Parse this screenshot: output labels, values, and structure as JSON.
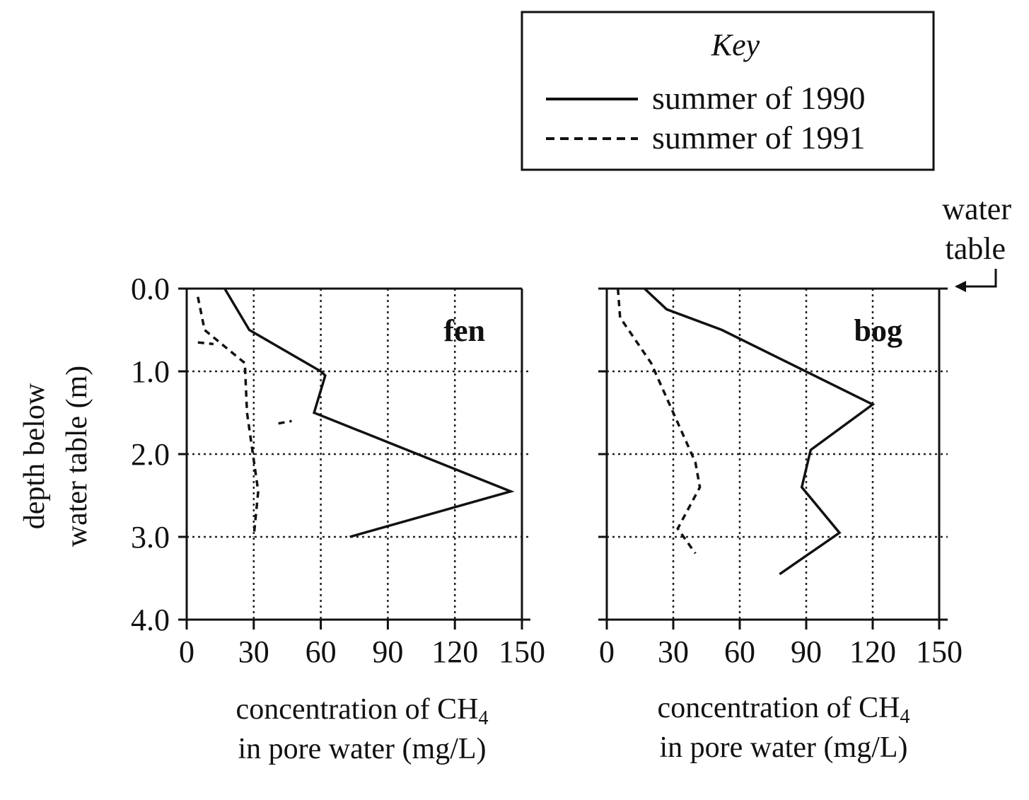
{
  "chart_data": {
    "type": "line",
    "legend": {
      "title": "Key",
      "placement": "top-right",
      "entries": [
        {
          "label": "summer of 1990",
          "style": "solid"
        },
        {
          "label": "summer of 1991",
          "style": "dashed"
        }
      ]
    },
    "y_axis": {
      "label_line1": "depth below",
      "label_line2": "water table (m)",
      "range": [
        0,
        4
      ],
      "inverted": true,
      "ticks": [
        "0.0",
        "1.0",
        "2.0",
        "3.0",
        "4.0"
      ],
      "tick_values": [
        0,
        1,
        2,
        3,
        4
      ]
    },
    "x_axis": {
      "range": [
        0,
        150
      ],
      "ticks": [
        "0",
        "30",
        "60",
        "90",
        "120",
        "150"
      ],
      "tick_values": [
        0,
        30,
        60,
        90,
        120,
        150
      ],
      "label_line1": "concentration of CH",
      "label_sub": "4",
      "label_line2": "in pore water (mg/L)"
    },
    "grid": "dotted",
    "annotation": {
      "line1": "water",
      "line2": "table"
    },
    "panels": [
      {
        "name": "fen",
        "series": [
          {
            "legend": "summer of 1990",
            "style": "solid",
            "points": [
              [
                17,
                0.0
              ],
              [
                28,
                0.5
              ],
              [
                60,
                1.0
              ],
              [
                62,
                1.05
              ],
              [
                57,
                1.5
              ],
              [
                145,
                2.45
              ],
              [
                73,
                3.0
              ]
            ]
          },
          {
            "legend": "summer of 1991",
            "style": "dashed",
            "points": [
              [
                5,
                0.1
              ],
              [
                8,
                0.5
              ],
              [
                26,
                0.9
              ],
              [
                27,
                1.5
              ],
              [
                32,
                2.45
              ],
              [
                30,
                3.0
              ]
            ]
          },
          {
            "legend": "summer of 1991",
            "style": "dashed",
            "points": [
              [
                5,
                0.65
              ],
              [
                12,
                0.67
              ]
            ]
          },
          {
            "legend": "summer of 1991",
            "style": "dashed",
            "points": [
              [
                41,
                1.63
              ],
              [
                47,
                1.6
              ]
            ]
          }
        ]
      },
      {
        "name": "bog",
        "series": [
          {
            "legend": "summer of 1990",
            "style": "solid",
            "points": [
              [
                17,
                0.0
              ],
              [
                27,
                0.25
              ],
              [
                52,
                0.5
              ],
              [
                120,
                1.4
              ],
              [
                92,
                1.95
              ],
              [
                88,
                2.4
              ],
              [
                105,
                2.95
              ],
              [
                78,
                3.45
              ]
            ]
          },
          {
            "legend": "summer of 1991",
            "style": "dashed",
            "points": [
              [
                5,
                0.0
              ],
              [
                6,
                0.35
              ],
              [
                20,
                0.9
              ],
              [
                30,
                1.5
              ],
              [
                40,
                2.1
              ],
              [
                42,
                2.4
              ],
              [
                32,
                2.9
              ],
              [
                40,
                3.2
              ]
            ]
          }
        ]
      }
    ]
  }
}
